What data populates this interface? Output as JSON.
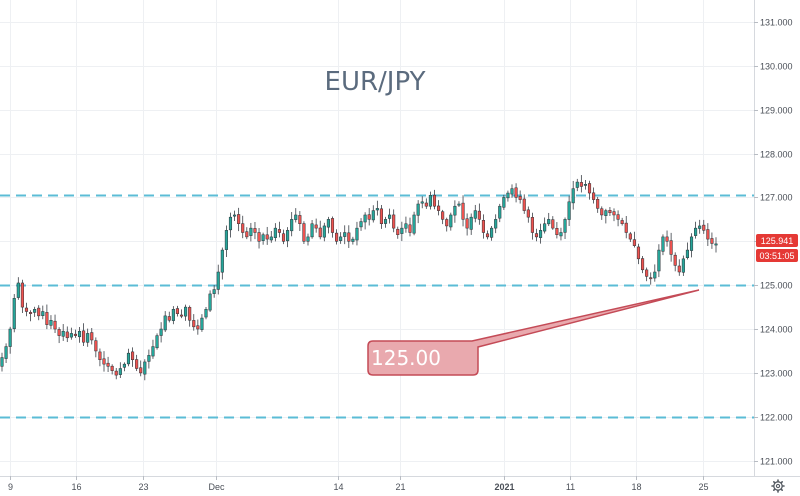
{
  "chart_data": {
    "type": "candlestick",
    "title": "EUR/JPY",
    "yaxis": {
      "range": [
        120.65,
        131.5
      ],
      "ticks": [
        "121.000",
        "122.000",
        "123.000",
        "124.000",
        "125.000",
        "126.000",
        "127.000",
        "128.000",
        "129.000",
        "130.000",
        "131.000"
      ]
    },
    "xaxis": {
      "ticks": [
        "9",
        "16",
        "23",
        "Dec",
        "14",
        "21",
        "2021",
        "11",
        "18",
        "25"
      ]
    },
    "grid": true,
    "levels": [
      127.05,
      125.0,
      122.0
    ],
    "level_color": "#5bbcd6",
    "callout": {
      "label": "125.00",
      "color": "#e9a9ae",
      "border": "#c44b57"
    },
    "price_label": {
      "price": "125.941",
      "countdown": "03:51:05",
      "color": "#e53935"
    },
    "up_color": "#26a69a",
    "down_color": "#ef5350",
    "closes": [
      123.35,
      123.6,
      124.0,
      124.7,
      125.05,
      124.5,
      124.4,
      124.35,
      124.45,
      124.3,
      124.4,
      124.1,
      124.2,
      124.0,
      123.85,
      123.95,
      123.8,
      123.9,
      123.85,
      123.95,
      123.7,
      123.9,
      123.75,
      123.5,
      123.3,
      123.2,
      123.15,
      123.05,
      122.95,
      123.1,
      123.2,
      123.45,
      123.3,
      123.1,
      123.0,
      123.25,
      123.4,
      123.6,
      123.85,
      124.0,
      124.3,
      124.2,
      124.45,
      124.35,
      124.3,
      124.5,
      124.2,
      124.05,
      124.0,
      124.25,
      124.45,
      124.8,
      124.9,
      125.3,
      125.8,
      126.25,
      126.55,
      126.6,
      126.4,
      126.2,
      126.1,
      126.3,
      126.2,
      126.0,
      126.15,
      126.05,
      126.1,
      126.3,
      126.2,
      126.0,
      126.25,
      126.5,
      126.6,
      126.4,
      126.0,
      126.1,
      126.4,
      126.3,
      126.1,
      126.35,
      126.5,
      126.2,
      126.0,
      126.1,
      126.2,
      126.0,
      126.05,
      126.3,
      126.45,
      126.6,
      126.5,
      126.7,
      126.75,
      126.4,
      126.5,
      126.6,
      126.3,
      126.15,
      126.3,
      126.4,
      126.2,
      126.6,
      126.85,
      126.9,
      126.8,
      127.05,
      126.8,
      126.7,
      126.5,
      126.35,
      126.6,
      126.8,
      126.85,
      126.5,
      126.3,
      126.55,
      126.7,
      126.5,
      126.2,
      126.1,
      126.3,
      126.5,
      126.8,
      127.0,
      127.1,
      127.2,
      127.0,
      126.95,
      126.7,
      126.55,
      126.2,
      126.1,
      126.25,
      126.4,
      126.5,
      126.3,
      126.15,
      126.2,
      126.5,
      126.9,
      127.2,
      127.35,
      127.25,
      127.3,
      127.1,
      126.95,
      126.75,
      126.6,
      126.7,
      126.65,
      126.6,
      126.5,
      126.4,
      126.2,
      126.05,
      125.9,
      125.6,
      125.35,
      125.2,
      125.15,
      125.3,
      125.8,
      126.1,
      126.0,
      125.7,
      125.45,
      125.3,
      125.6,
      125.8,
      126.1,
      126.3,
      126.35,
      126.25,
      126.05,
      125.95,
      125.941
    ]
  }
}
